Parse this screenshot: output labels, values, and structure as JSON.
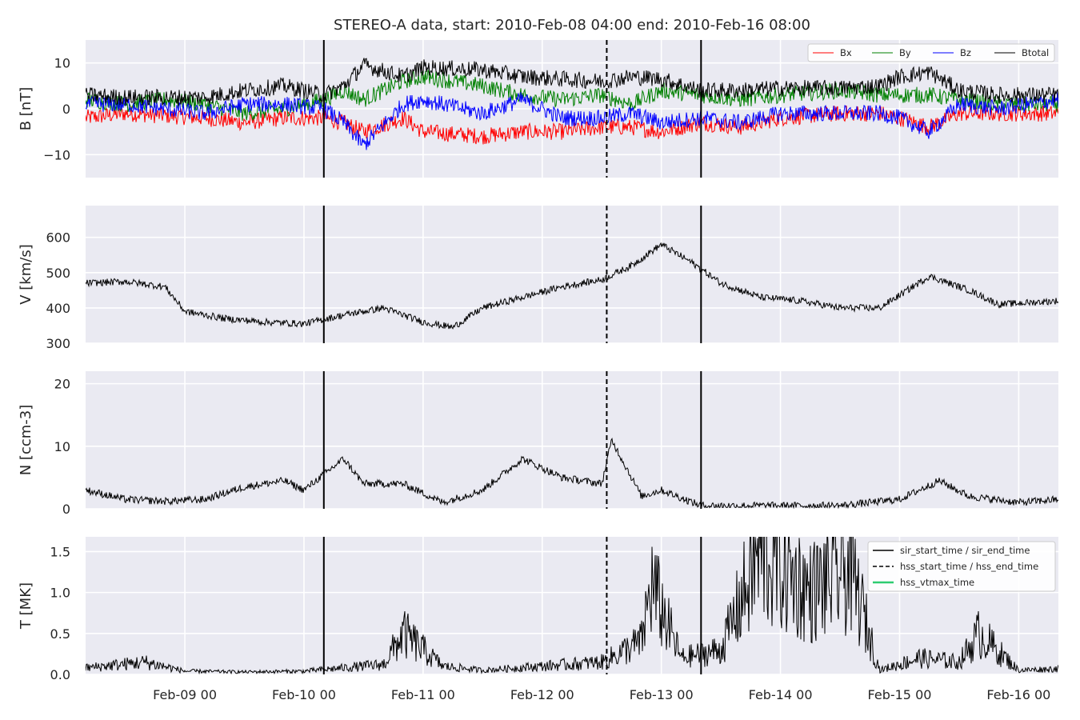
{
  "chart_data": {
    "type": "line",
    "title": "STEREO-A data, start: 2010-Feb-08 04:00  end: 2010-Feb-16 08:00",
    "time_range": [
      "2010-02-08 04:00",
      "2010-02-16 08:00"
    ],
    "x_tick_labels": [
      "Feb-09 00",
      "Feb-10 00",
      "Feb-11 00",
      "Feb-12 00",
      "Feb-13 00",
      "Feb-14 00",
      "Feb-15 00",
      "Feb-16 00"
    ],
    "x_ticks": [
      "2010-02-09 00:00",
      "2010-02-10 00:00",
      "2010-02-11 00:00",
      "2010-02-12 00:00",
      "2010-02-13 00:00",
      "2010-02-14 00:00",
      "2010-02-15 00:00",
      "2010-02-16 00:00"
    ],
    "events": {
      "sir_start_time": "2010-02-10 04:00",
      "hss_start_time": "2010-02-12 13:00",
      "sir_end_time": "2010-02-13 08:00"
    },
    "legend_bottom": [
      {
        "label": "sir_start_time / sir_end_time",
        "style": "solid",
        "color": "#000000"
      },
      {
        "label": "hss_start_time / hss_end_time",
        "style": "dashed",
        "color": "#000000"
      },
      {
        "label": "hss_vtmax_time",
        "style": "solid",
        "color": "#2ecc71"
      }
    ],
    "grid": true,
    "background": "#eaeaf2",
    "panels": [
      {
        "ylabel": "B [nT]",
        "ylim": [
          -15,
          15
        ],
        "yticks": [
          -10,
          0,
          10
        ],
        "legend": "top-right",
        "series": [
          {
            "name": "Bx",
            "color": "#ff0000",
            "points": [
              [
                "2010-02-08 04:00",
                -2
              ],
              [
                "2010-02-08 12:00",
                -1
              ],
              [
                "2010-02-08 20:00",
                -1.5
              ],
              [
                "2010-02-09 04:00",
                -2
              ],
              [
                "2010-02-09 12:00",
                -3
              ],
              [
                "2010-02-09 20:00",
                -2
              ],
              [
                "2010-02-10 04:00",
                -2
              ],
              [
                "2010-02-10 08:00",
                -3
              ],
              [
                "2010-02-10 12:00",
                -5
              ],
              [
                "2010-02-10 20:00",
                -2
              ],
              [
                "2010-02-11 00:00",
                -5
              ],
              [
                "2010-02-11 12:00",
                -6
              ],
              [
                "2010-02-11 20:00",
                -5
              ],
              [
                "2010-02-12 04:00",
                -5
              ],
              [
                "2010-02-12 12:00",
                -4
              ],
              [
                "2010-02-12 18:00",
                -4
              ],
              [
                "2010-02-13 00:00",
                -5
              ],
              [
                "2010-02-13 08:00",
                -3
              ],
              [
                "2010-02-13 16:00",
                -4
              ],
              [
                "2010-02-14 00:00",
                -2
              ],
              [
                "2010-02-14 12:00",
                -1
              ],
              [
                "2010-02-14 20:00",
                -1
              ],
              [
                "2010-02-15 00:00",
                -2
              ],
              [
                "2010-02-15 06:00",
                -4
              ],
              [
                "2010-02-15 12:00",
                -1
              ],
              [
                "2010-02-15 20:00",
                -1
              ],
              [
                "2010-02-16 08:00",
                -1
              ]
            ]
          },
          {
            "name": "By",
            "color": "#008000",
            "points": [
              [
                "2010-02-08 04:00",
                2
              ],
              [
                "2010-02-08 12:00",
                1
              ],
              [
                "2010-02-08 20:00",
                2
              ],
              [
                "2010-02-09 04:00",
                1
              ],
              [
                "2010-02-09 12:00",
                -1
              ],
              [
                "2010-02-09 20:00",
                0
              ],
              [
                "2010-02-10 04:00",
                2
              ],
              [
                "2010-02-10 08:00",
                4
              ],
              [
                "2010-02-10 12:00",
                2
              ],
              [
                "2010-02-10 20:00",
                6
              ],
              [
                "2010-02-11 00:00",
                7
              ],
              [
                "2010-02-11 12:00",
                5
              ],
              [
                "2010-02-11 20:00",
                3
              ],
              [
                "2010-02-12 04:00",
                2
              ],
              [
                "2010-02-12 12:00",
                3
              ],
              [
                "2010-02-12 18:00",
                1
              ],
              [
                "2010-02-13 00:00",
                4
              ],
              [
                "2010-02-13 08:00",
                3
              ],
              [
                "2010-02-13 16:00",
                2
              ],
              [
                "2010-02-14 00:00",
                3
              ],
              [
                "2010-02-14 12:00",
                4
              ],
              [
                "2010-02-14 20:00",
                3
              ],
              [
                "2010-02-15 00:00",
                3
              ],
              [
                "2010-02-15 06:00",
                3
              ],
              [
                "2010-02-15 12:00",
                2
              ],
              [
                "2010-02-15 20:00",
                1
              ],
              [
                "2010-02-16 08:00",
                1
              ]
            ]
          },
          {
            "name": "Bz",
            "color": "#0000ff",
            "points": [
              [
                "2010-02-08 04:00",
                1
              ],
              [
                "2010-02-08 12:00",
                1
              ],
              [
                "2010-02-08 20:00",
                0
              ],
              [
                "2010-02-09 04:00",
                -1
              ],
              [
                "2010-02-09 12:00",
                1
              ],
              [
                "2010-02-09 20:00",
                1
              ],
              [
                "2010-02-10 04:00",
                0
              ],
              [
                "2010-02-10 08:00",
                -3
              ],
              [
                "2010-02-10 12:00",
                -8
              ],
              [
                "2010-02-10 20:00",
                1
              ],
              [
                "2010-02-11 00:00",
                2
              ],
              [
                "2010-02-11 12:00",
                -1
              ],
              [
                "2010-02-11 20:00",
                2
              ],
              [
                "2010-02-12 04:00",
                -2
              ],
              [
                "2010-02-12 12:00",
                -2
              ],
              [
                "2010-02-12 18:00",
                -1
              ],
              [
                "2010-02-13 00:00",
                -3
              ],
              [
                "2010-02-13 08:00",
                -2
              ],
              [
                "2010-02-13 16:00",
                -3
              ],
              [
                "2010-02-14 00:00",
                -1
              ],
              [
                "2010-02-14 12:00",
                -1
              ],
              [
                "2010-02-14 20:00",
                -1
              ],
              [
                "2010-02-15 00:00",
                -2
              ],
              [
                "2010-02-15 06:00",
                -5
              ],
              [
                "2010-02-15 12:00",
                1
              ],
              [
                "2010-02-15 20:00",
                0
              ],
              [
                "2010-02-16 08:00",
                2
              ]
            ]
          },
          {
            "name": "Btotal",
            "color": "#000000",
            "points": [
              [
                "2010-02-08 04:00",
                3
              ],
              [
                "2010-02-08 12:00",
                2.5
              ],
              [
                "2010-02-08 20:00",
                2.5
              ],
              [
                "2010-02-09 04:00",
                2.5
              ],
              [
                "2010-02-09 12:00",
                4
              ],
              [
                "2010-02-09 20:00",
                5
              ],
              [
                "2010-02-10 04:00",
                3
              ],
              [
                "2010-02-10 08:00",
                5
              ],
              [
                "2010-02-10 12:00",
                9.5
              ],
              [
                "2010-02-10 20:00",
                7
              ],
              [
                "2010-02-11 00:00",
                9
              ],
              [
                "2010-02-11 12:00",
                8.5
              ],
              [
                "2010-02-11 20:00",
                7
              ],
              [
                "2010-02-12 04:00",
                6.5
              ],
              [
                "2010-02-12 12:00",
                6
              ],
              [
                "2010-02-12 18:00",
                7
              ],
              [
                "2010-02-13 00:00",
                6.5
              ],
              [
                "2010-02-13 08:00",
                4
              ],
              [
                "2010-02-13 16:00",
                4
              ],
              [
                "2010-02-14 00:00",
                4.5
              ],
              [
                "2010-02-14 12:00",
                4.5
              ],
              [
                "2010-02-14 20:00",
                5
              ],
              [
                "2010-02-15 00:00",
                7
              ],
              [
                "2010-02-15 06:00",
                8
              ],
              [
                "2010-02-15 12:00",
                4
              ],
              [
                "2010-02-15 20:00",
                3
              ],
              [
                "2010-02-16 08:00",
                3
              ]
            ]
          }
        ]
      },
      {
        "ylabel": "V [km/s]",
        "ylim": [
          300,
          690
        ],
        "yticks": [
          300,
          400,
          500,
          600
        ],
        "series": [
          {
            "name": "V",
            "color": "#000000",
            "points": [
              [
                "2010-02-08 04:00",
                470
              ],
              [
                "2010-02-08 12:00",
                475
              ],
              [
                "2010-02-08 20:00",
                460
              ],
              [
                "2010-02-09 00:00",
                390
              ],
              [
                "2010-02-09 08:00",
                370
              ],
              [
                "2010-02-09 16:00",
                360
              ],
              [
                "2010-02-10 00:00",
                355
              ],
              [
                "2010-02-10 08:00",
                380
              ],
              [
                "2010-02-10 16:00",
                400
              ],
              [
                "2010-02-11 00:00",
                360
              ],
              [
                "2010-02-11 06:00",
                345
              ],
              [
                "2010-02-11 12:00",
                400
              ],
              [
                "2010-02-11 20:00",
                430
              ],
              [
                "2010-02-12 04:00",
                460
              ],
              [
                "2010-02-12 12:00",
                480
              ],
              [
                "2010-02-12 18:00",
                520
              ],
              [
                "2010-02-13 00:00",
                580
              ],
              [
                "2010-02-13 06:00",
                530
              ],
              [
                "2010-02-13 12:00",
                470
              ],
              [
                "2010-02-13 20:00",
                430
              ],
              [
                "2010-02-14 04:00",
                420
              ],
              [
                "2010-02-14 12:00",
                400
              ],
              [
                "2010-02-14 20:00",
                400
              ],
              [
                "2010-02-15 06:00",
                490
              ],
              [
                "2010-02-15 14:00",
                450
              ],
              [
                "2010-02-15 20:00",
                410
              ],
              [
                "2010-02-16 08:00",
                420
              ]
            ]
          }
        ]
      },
      {
        "ylabel": "N [ccm-3]",
        "ylim": [
          0,
          22
        ],
        "yticks": [
          0,
          10,
          20
        ],
        "series": [
          {
            "name": "N",
            "color": "#000000",
            "points": [
              [
                "2010-02-08 04:00",
                3
              ],
              [
                "2010-02-08 12:00",
                1.5
              ],
              [
                "2010-02-08 20:00",
                1.2
              ],
              [
                "2010-02-09 04:00",
                1.5
              ],
              [
                "2010-02-09 12:00",
                3.5
              ],
              [
                "2010-02-09 20:00",
                4.5
              ],
              [
                "2010-02-10 00:00",
                3
              ],
              [
                "2010-02-10 08:00",
                8
              ],
              [
                "2010-02-10 12:00",
                4
              ],
              [
                "2010-02-10 20:00",
                4
              ],
              [
                "2010-02-11 04:00",
                1
              ],
              [
                "2010-02-11 12:00",
                3
              ],
              [
                "2010-02-11 20:00",
                8
              ],
              [
                "2010-02-12 04:00",
                5
              ],
              [
                "2010-02-12 12:00",
                4
              ],
              [
                "2010-02-12 14:00",
                11
              ],
              [
                "2010-02-12 20:00",
                2
              ],
              [
                "2010-02-13 00:00",
                3
              ],
              [
                "2010-02-13 08:00",
                0.5
              ],
              [
                "2010-02-14 00:00",
                0.5
              ],
              [
                "2010-02-14 12:00",
                0.5
              ],
              [
                "2010-02-15 00:00",
                1.5
              ],
              [
                "2010-02-15 08:00",
                4.5
              ],
              [
                "2010-02-15 14:00",
                2
              ],
              [
                "2010-02-16 00:00",
                1
              ],
              [
                "2010-02-16 08:00",
                1.5
              ]
            ]
          }
        ]
      },
      {
        "ylabel": "T [MK]",
        "ylim": [
          0,
          1.68
        ],
        "yticks": [
          0.0,
          0.5,
          1.0,
          1.5
        ],
        "series": [
          {
            "name": "T",
            "color": "#000000",
            "points": [
              [
                "2010-02-08 04:00",
                0.08
              ],
              [
                "2010-02-08 16:00",
                0.15
              ],
              [
                "2010-02-09 00:00",
                0.04
              ],
              [
                "2010-02-09 12:00",
                0.03
              ],
              [
                "2010-02-10 00:00",
                0.04
              ],
              [
                "2010-02-10 16:00",
                0.12
              ],
              [
                "2010-02-10 20:00",
                0.5
              ],
              [
                "2010-02-11 04:00",
                0.1
              ],
              [
                "2010-02-11 12:00",
                0.05
              ],
              [
                "2010-02-12 00:00",
                0.1
              ],
              [
                "2010-02-12 12:00",
                0.15
              ],
              [
                "2010-02-12 20:00",
                0.4
              ],
              [
                "2010-02-12 22:00",
                1.1
              ],
              [
                "2010-02-13 04:00",
                0.2
              ],
              [
                "2010-02-13 12:00",
                0.3
              ],
              [
                "2010-02-13 20:00",
                1.5
              ],
              [
                "2010-02-14 06:00",
                1.0
              ],
              [
                "2010-02-14 14:00",
                1.3
              ],
              [
                "2010-02-14 20:00",
                0.05
              ],
              [
                "2010-02-15 04:00",
                0.2
              ],
              [
                "2010-02-15 12:00",
                0.15
              ],
              [
                "2010-02-15 16:00",
                0.5
              ],
              [
                "2010-02-16 00:00",
                0.05
              ],
              [
                "2010-02-16 08:00",
                0.07
              ]
            ]
          }
        ]
      }
    ]
  }
}
